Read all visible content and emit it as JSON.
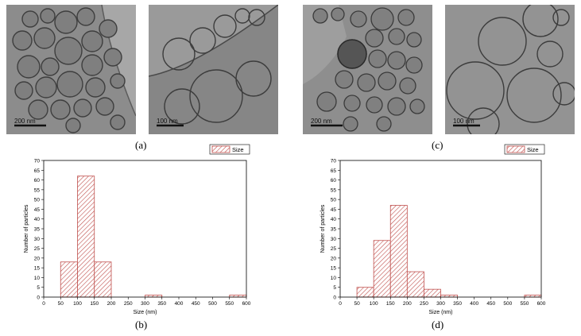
{
  "panels": [
    {
      "id": "a",
      "label": "(a)",
      "scale_bars": [
        "200 nm",
        "100 nm"
      ]
    },
    {
      "id": "b",
      "label": "(b)"
    },
    {
      "id": "c",
      "label": "(c)",
      "scale_bars": [
        "200 nm",
        "100 nm"
      ]
    },
    {
      "id": "d",
      "label": "(d)"
    }
  ],
  "chart_data": [
    {
      "type": "bar",
      "panel": "b",
      "xlabel": "Size (nm)",
      "ylabel": "Number of particles",
      "legend": [
        "Size"
      ],
      "legend_position": "top-right",
      "xlim": [
        0,
        600
      ],
      "ylim": [
        0,
        70
      ],
      "xticks": [
        0,
        50,
        100,
        150,
        200,
        250,
        300,
        350,
        400,
        450,
        500,
        550,
        600
      ],
      "yticks": [
        0,
        5,
        10,
        15,
        20,
        25,
        30,
        35,
        40,
        45,
        50,
        55,
        60,
        65,
        70
      ],
      "bins": [
        [
          50,
          100
        ],
        [
          100,
          150
        ],
        [
          150,
          200
        ],
        [
          300,
          350
        ],
        [
          550,
          600
        ]
      ],
      "values": [
        18,
        62,
        18,
        1,
        1
      ],
      "bar_color": "#c0504d"
    },
    {
      "type": "bar",
      "panel": "d",
      "xlabel": "Size (nm)",
      "ylabel": "Number of particles",
      "legend": [
        "Size"
      ],
      "legend_position": "top-right",
      "xlim": [
        0,
        600
      ],
      "ylim": [
        0,
        70
      ],
      "xticks": [
        0,
        50,
        100,
        150,
        200,
        250,
        300,
        350,
        400,
        450,
        500,
        550,
        600
      ],
      "yticks": [
        0,
        5,
        10,
        15,
        20,
        25,
        30,
        35,
        40,
        45,
        50,
        55,
        60,
        65,
        70
      ],
      "bins": [
        [
          50,
          100
        ],
        [
          100,
          150
        ],
        [
          150,
          200
        ],
        [
          200,
          250
        ],
        [
          250,
          300
        ],
        [
          300,
          350
        ],
        [
          550,
          600
        ]
      ],
      "values": [
        5,
        29,
        47,
        13,
        4,
        1,
        1
      ],
      "bar_color": "#c0504d"
    }
  ]
}
